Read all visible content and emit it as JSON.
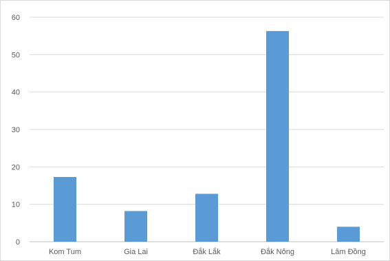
{
  "chart_data": {
    "type": "bar",
    "title": "",
    "xlabel": "",
    "ylabel": "",
    "categories": [
      "Kom Tum",
      "Gia Lai",
      "Đắk Lắk",
      "Đắk Nông",
      "Lâm Đồng"
    ],
    "values": [
      17.3,
      8.2,
      12.8,
      56.3,
      4.0
    ],
    "ylim": [
      0,
      60
    ],
    "yticks": [
      0,
      10,
      20,
      30,
      40,
      50,
      60
    ],
    "grid": true,
    "legend": "none",
    "bar_color": "#5b9bd5",
    "grid_color": "#d9d9d9",
    "axis_color": "#bfbfbf"
  }
}
